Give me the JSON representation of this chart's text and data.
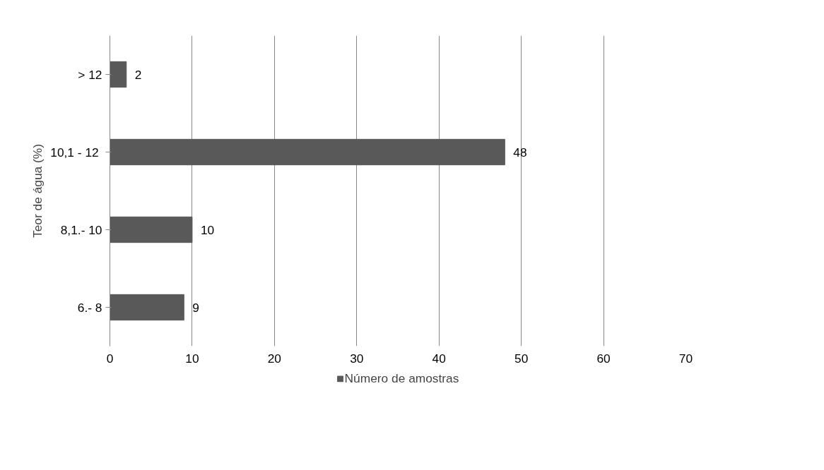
{
  "chart_data": {
    "type": "bar",
    "orientation": "horizontal",
    "ylabel": "Teor de água (%)",
    "categories": [
      "> 12",
      "10,1  - 12",
      "8,1.- 10",
      "6.- 8"
    ],
    "series": [
      {
        "name": "Número de amostras",
        "color": "#595959",
        "values": [
          2,
          48,
          10,
          9
        ]
      }
    ],
    "xlim": [
      0,
      70
    ],
    "xticks": [
      0,
      10,
      20,
      30,
      40,
      50,
      60,
      70
    ],
    "grid": "x",
    "legend": "bottom",
    "data_labels": true
  }
}
